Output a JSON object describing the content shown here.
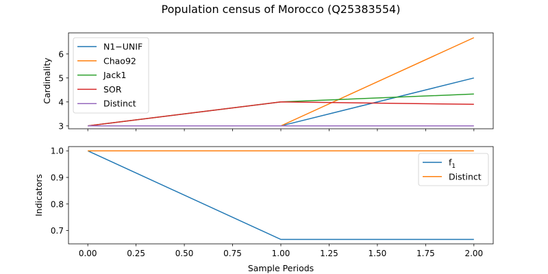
{
  "chart_data": {
    "title": "Population census of Morocco (Q25383554)",
    "xlabel": "Sample Periods",
    "x_ticks": [
      "0.00",
      "0.25",
      "0.50",
      "0.75",
      "1.00",
      "1.25",
      "1.50",
      "1.75",
      "2.00"
    ],
    "subplots": [
      {
        "type": "line",
        "ylabel": "Cardinality",
        "xlim": [
          -0.1,
          2.1
        ],
        "ylim": [
          2.88,
          6.88
        ],
        "yticks": [
          3,
          4,
          5,
          6
        ],
        "legend_position": "top-left",
        "x": [
          0,
          1,
          2
        ],
        "series": [
          {
            "name": "N1−UNIF",
            "color": "#1f77b4",
            "values": [
              3,
              3,
              5
            ]
          },
          {
            "name": "Chao92",
            "color": "#ff7f0e",
            "values": [
              3,
              3,
              6.68
            ]
          },
          {
            "name": "Jack1",
            "color": "#2ca02c",
            "values": [
              3,
              4,
              4.33
            ]
          },
          {
            "name": "SOR",
            "color": "#d62728",
            "values": [
              3,
              4,
              3.9
            ]
          },
          {
            "name": "Distinct",
            "color": "#9467bd",
            "values": [
              3,
              3,
              3
            ]
          }
        ]
      },
      {
        "type": "line",
        "ylabel": "Indicators",
        "xlim": [
          -0.1,
          2.1
        ],
        "ylim": [
          0.65,
          1.016
        ],
        "yticks": [
          0.7,
          0.8,
          0.9,
          1.0
        ],
        "ytick_labels": [
          "0.7",
          "0.8",
          "0.9",
          "1.0"
        ],
        "legend_position": "top-right",
        "x": [
          0,
          1,
          2
        ],
        "series": [
          {
            "name": "f",
            "subscript": "1",
            "color": "#1f77b4",
            "values": [
              1.0,
              0.6667,
              0.6667
            ]
          },
          {
            "name": "Distinct",
            "color": "#ff7f0e",
            "values": [
              1.0,
              1.0,
              1.0
            ]
          }
        ]
      }
    ]
  }
}
